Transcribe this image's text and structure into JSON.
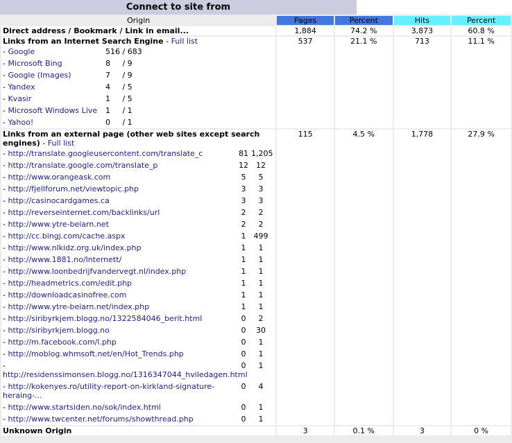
{
  "title": "Connect to site from",
  "headers": {
    "origin": "Origin",
    "pages": "Pages",
    "percent1": "Percent",
    "hits": "Hits",
    "percent2": "Percent"
  },
  "direct": {
    "label": "Direct address / Bookmark / Link in email...",
    "pages": "1,884",
    "percent1": "74.2 %",
    "hits": "3,873",
    "percent2": "60.8 %"
  },
  "search": {
    "label": "Links from an Internet Search Engine",
    "link": "Full list",
    "pages": "537",
    "percent1": "21.1 %",
    "hits": "713",
    "percent2": "11.1 %",
    "engines": [
      {
        "name": "Google",
        "value": "516 / 683"
      },
      {
        "name": "Microsoft Bing",
        "value": "8     / 9"
      },
      {
        "name": "Google (Images)",
        "value": "7     / 9"
      },
      {
        "name": "Yandex",
        "value": "4     / 5"
      },
      {
        "name": "Kvasir",
        "value": "1     / 5"
      },
      {
        "name": "Microsoft Windows Live",
        "value": "1     / 1"
      },
      {
        "name": "Yahoo!",
        "value": "0     / 1"
      }
    ]
  },
  "external": {
    "label": "Links from an external page (other web sites except search engines)",
    "link": "Full list",
    "pages": "115",
    "percent1": "4.5 %",
    "hits": "1,778",
    "percent2": "27.9 %",
    "refs": [
      {
        "url": "http://translate.googleusercontent.com/translate_c",
        "pages": "81",
        "hits": "1,205"
      },
      {
        "url": "http://translate.google.com/translate_p",
        "pages": "12",
        "hits": "12"
      },
      {
        "url": "http://www.orangeask.com",
        "pages": "5",
        "hits": "5"
      },
      {
        "url": "http://fjellforum.net/viewtopic.php",
        "pages": "3",
        "hits": "3"
      },
      {
        "url": "http://casinocardgames.ca",
        "pages": "3",
        "hits": "3"
      },
      {
        "url": "http://reverseinternet.com/backlinks/url",
        "pages": "2",
        "hits": "2"
      },
      {
        "url": "http://www.ytre-beiarn.net",
        "pages": "2",
        "hits": "2"
      },
      {
        "url": "http://cc.bingj.com/cache.aspx",
        "pages": "1",
        "hits": "499"
      },
      {
        "url": "http://www.nlkidz.org.uk/index.php",
        "pages": "1",
        "hits": "1"
      },
      {
        "url": "http://www.1881.no/Internett/",
        "pages": "1",
        "hits": "1"
      },
      {
        "url": "http://www.loonbedrijfvandervegt.nl/index.php",
        "pages": "1",
        "hits": "1"
      },
      {
        "url": "http://headmetrics.com/edit.php",
        "pages": "1",
        "hits": "1"
      },
      {
        "url": "http://downloadcasinofree.com",
        "pages": "1",
        "hits": "1"
      },
      {
        "url": "http://www.ytre-beiarn.net/index.php",
        "pages": "1",
        "hits": "1"
      },
      {
        "url": "http://siribyrkjem.blogg.no/1322584046_berit.html",
        "pages": "0",
        "hits": "2"
      },
      {
        "url": "http://siribyrkjem.blogg.no",
        "pages": "0",
        "hits": "30"
      },
      {
        "url": "http://m.facebook.com/l.php",
        "pages": "0",
        "hits": "1"
      },
      {
        "url": "http://moblog.whmsoft.net/en/Hot_Trends.php",
        "pages": "0",
        "hits": "1"
      },
      {
        "url": "http://residenssimonsen.blogg.no/1316347044_hviledagen.html",
        "pages": "0",
        "hits": "1"
      },
      {
        "url": "http://kokenyes.ro/utility-report-on-kirkland-signature-heraing-...",
        "pages": "0",
        "hits": "4"
      },
      {
        "url": "http://www.startsiden.no/sok/index.html",
        "pages": "0",
        "hits": "1"
      },
      {
        "url": "http://www.twcenter.net/forums/showthread.php",
        "pages": "0",
        "hits": "1"
      }
    ]
  },
  "unknown": {
    "label": "Unknown Origin",
    "pages": "3",
    "percent1": "0.1 %",
    "hits": "3",
    "percent2": "0 %"
  },
  "colors": {
    "pages_header": "#4477dd",
    "hits_header": "#66f0ff",
    "link": "#202090",
    "title_bg": "#cccce0"
  }
}
